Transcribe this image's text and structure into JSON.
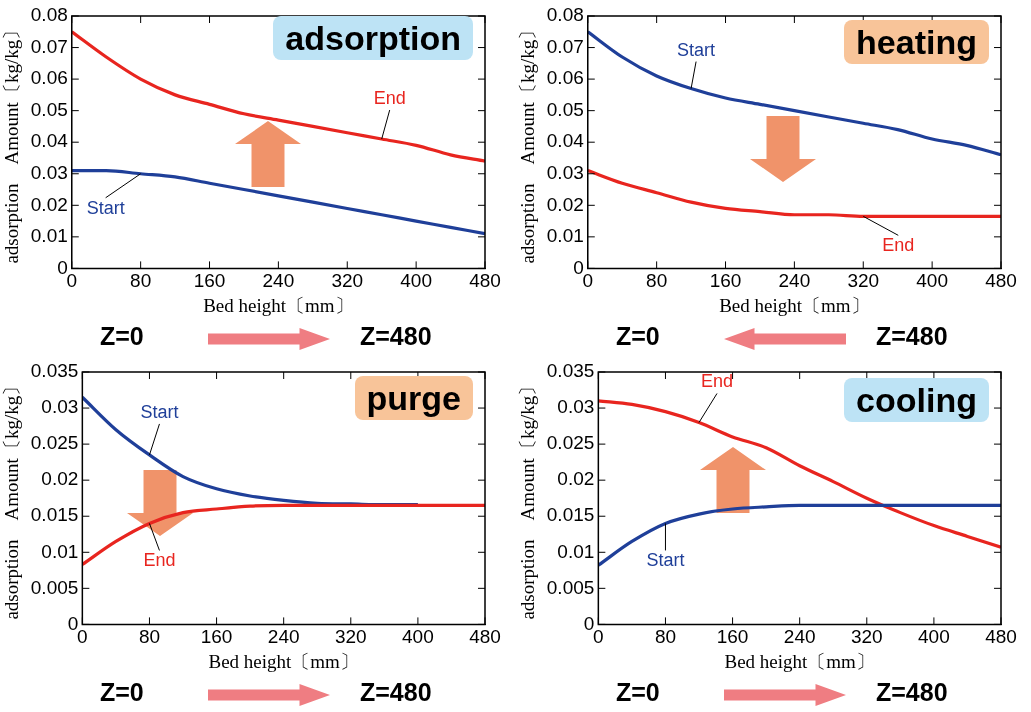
{
  "chart_data": [
    {
      "type": "line",
      "title": "adsorption",
      "xlabel": "Bed height〔mm〕",
      "ylabel": "adsorption　Amount〔kg/kg〕",
      "x": [
        0,
        40,
        80,
        120,
        160,
        200,
        240,
        280,
        320,
        360,
        400,
        440,
        480
      ],
      "xlim": [
        0,
        480
      ],
      "xticks": [
        0,
        80,
        160,
        240,
        320,
        400,
        480
      ],
      "ylim": [
        0,
        0.08
      ],
      "yticks": [
        0,
        0.01,
        0.02,
        0.03,
        0.04,
        0.05,
        0.06,
        0.07,
        0.08
      ],
      "grid": false,
      "legend": false,
      "marker": "none",
      "annotations": [
        "Z=0",
        "Z=480"
      ],
      "series": [
        {
          "name": "End",
          "color": "#e8251f",
          "values": [
            0.075,
            0.067,
            0.06,
            0.055,
            0.052,
            0.049,
            0.047,
            0.045,
            0.043,
            0.041,
            0.039,
            0.036,
            0.034
          ]
        },
        {
          "name": "Start",
          "color": "#1f3f99",
          "values": [
            0.031,
            0.031,
            0.03,
            0.029,
            0.027,
            0.025,
            0.023,
            0.021,
            0.019,
            0.017,
            0.015,
            0.013,
            0.011
          ]
        }
      ]
    },
    {
      "type": "line",
      "title": "heating",
      "xlabel": "Bed height〔mm〕",
      "ylabel": "adsorption　Amount〔kg/kg〕",
      "x": [
        0,
        40,
        80,
        120,
        160,
        200,
        240,
        280,
        320,
        360,
        400,
        440,
        480
      ],
      "xlim": [
        0,
        480
      ],
      "xticks": [
        0,
        80,
        160,
        240,
        320,
        400,
        480
      ],
      "ylim": [
        0,
        0.08
      ],
      "yticks": [
        0,
        0.01,
        0.02,
        0.03,
        0.04,
        0.05,
        0.06,
        0.07,
        0.08
      ],
      "grid": false,
      "legend": false,
      "marker": "none",
      "annotations": [
        "Z=0",
        "Z=480"
      ],
      "series": [
        {
          "name": "Start",
          "color": "#1f3f99",
          "values": [
            0.075,
            0.067,
            0.061,
            0.057,
            0.054,
            0.052,
            0.05,
            0.048,
            0.046,
            0.044,
            0.041,
            0.039,
            0.036
          ]
        },
        {
          "name": "End",
          "color": "#e8251f",
          "values": [
            0.031,
            0.027,
            0.024,
            0.021,
            0.019,
            0.018,
            0.017,
            0.017,
            0.0165,
            0.0165,
            0.0165,
            0.0165,
            0.0165
          ]
        }
      ]
    },
    {
      "type": "line",
      "title": "purge",
      "xlabel": "Bed height〔mm〕",
      "ylabel": "adsorption　Amount〔kg/kg〕",
      "x": [
        0,
        40,
        80,
        120,
        160,
        200,
        240,
        280,
        320,
        360,
        400,
        440,
        480
      ],
      "xlim": [
        0,
        480
      ],
      "xticks": [
        0,
        80,
        160,
        240,
        320,
        400,
        480
      ],
      "ylim": [
        0,
        0.035
      ],
      "yticks": [
        0,
        0.005,
        0.01,
        0.015,
        0.02,
        0.025,
        0.03,
        0.035
      ],
      "grid": false,
      "legend": false,
      "marker": "none",
      "annotations": [
        "Z=0",
        "Z=480"
      ],
      "series": [
        {
          "name": "Start",
          "color": "#1f3f99",
          "values": [
            0.0315,
            0.027,
            0.0235,
            0.0205,
            0.0188,
            0.0178,
            0.0172,
            0.0168,
            0.0167,
            0.0166,
            0.0166,
            null,
            null
          ]
        },
        {
          "name": "End",
          "color": "#e8251f",
          "values": [
            0.0083,
            0.0115,
            0.014,
            0.0155,
            0.016,
            0.0164,
            0.0165,
            0.0165,
            0.0165,
            0.0165,
            0.0165,
            0.0165,
            0.0165
          ]
        }
      ]
    },
    {
      "type": "line",
      "title": "cooling",
      "xlabel": "Bed height〔mm〕",
      "ylabel": "adsorption　Amount〔kg/kg〕",
      "x": [
        0,
        40,
        80,
        120,
        160,
        200,
        240,
        280,
        320,
        360,
        400,
        440,
        480
      ],
      "xlim": [
        0,
        480
      ],
      "xticks": [
        0,
        80,
        160,
        240,
        320,
        400,
        480
      ],
      "ylim": [
        0,
        0.035
      ],
      "yticks": [
        0,
        0.005,
        0.01,
        0.015,
        0.02,
        0.025,
        0.03,
        0.035
      ],
      "grid": false,
      "legend": false,
      "marker": "none",
      "annotations": [
        "Z=0",
        "Z=480"
      ],
      "series": [
        {
          "name": "End",
          "color": "#e8251f",
          "values": [
            0.031,
            0.0305,
            0.0295,
            0.028,
            0.026,
            0.0245,
            0.022,
            0.0198,
            0.0175,
            0.0155,
            0.0137,
            0.0122,
            0.0107
          ]
        },
        {
          "name": "Start",
          "color": "#1f3f99",
          "values": [
            0.0082,
            0.0115,
            0.014,
            0.0153,
            0.016,
            0.0163,
            0.0165,
            0.0165,
            0.0165,
            0.0165,
            0.0165,
            0.0165,
            0.0165
          ]
        }
      ]
    }
  ]
}
